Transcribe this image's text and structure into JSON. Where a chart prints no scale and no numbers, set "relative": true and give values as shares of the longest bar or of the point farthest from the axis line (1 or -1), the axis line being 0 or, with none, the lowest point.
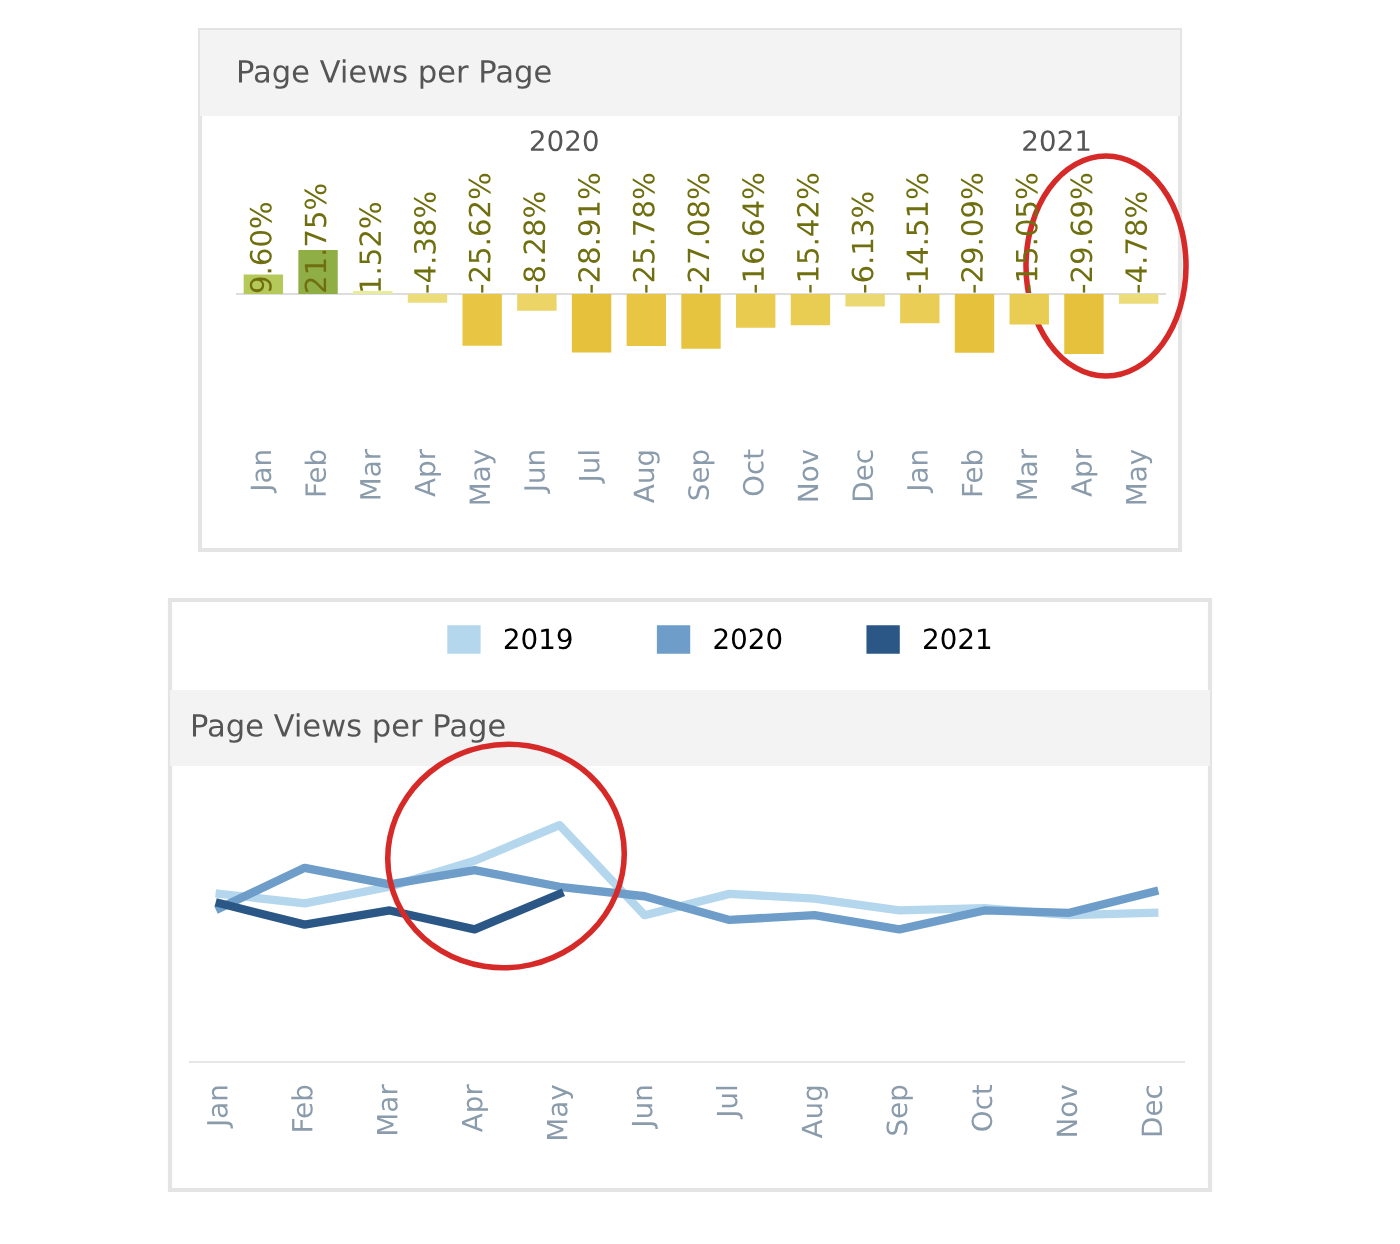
{
  "chart_data": [
    {
      "type": "bar",
      "title": "Page Views per Page",
      "categories": [
        "Jan",
        "Feb",
        "Mar",
        "Apr",
        "May",
        "Jun",
        "Jul",
        "Aug",
        "Sep",
        "Oct",
        "Nov",
        "Dec",
        "Jan",
        "Feb",
        "Mar",
        "Apr",
        "May"
      ],
      "values": [
        9.6,
        21.75,
        1.52,
        -4.38,
        -25.62,
        -8.28,
        -28.91,
        -25.78,
        -27.08,
        -16.64,
        -15.42,
        -6.13,
        -14.51,
        -29.09,
        -15.05,
        -29.69,
        -4.78
      ],
      "value_labels": [
        "9.60%",
        "21.75%",
        "1.52%",
        "-4.38%",
        "-25.62%",
        "-8.28%",
        "-28.91%",
        "-25.78%",
        "-27.08%",
        "-16.64%",
        "-15.42%",
        "-6.13%",
        "-14.51%",
        "-29.09%",
        "-15.05%",
        "-29.69%",
        "-4.78%"
      ],
      "colors": [
        "#b5c95a",
        "#8fae45",
        "#e9ec9a",
        "#ecdc7a",
        "#e8c643",
        "#ecd466",
        "#e5c13c",
        "#e8c643",
        "#e6c440",
        "#e9cb4f",
        "#e9cc52",
        "#ecd870",
        "#eacd55",
        "#e5c13c",
        "#e9cc52",
        "#e5c13c",
        "#ecdc7a"
      ],
      "annotations": [
        "2020",
        "2021"
      ]
    },
    {
      "type": "line",
      "title": "Page Views per Page",
      "relative": true,
      "categories": [
        "Jan",
        "Feb",
        "Mar",
        "Apr",
        "May",
        "Jun",
        "Jul",
        "Aug",
        "Sep",
        "Oct",
        "Nov",
        "Dec"
      ],
      "series": [
        {
          "name": "2019",
          "color": "#b4d7ed",
          "values": [
            0.71,
            0.67,
            0.74,
            0.85,
            1.0,
            0.62,
            0.71,
            0.69,
            0.64,
            0.65,
            0.62,
            0.63
          ]
        },
        {
          "name": "2020",
          "color": "#6d9dc8",
          "values": [
            0.65,
            0.82,
            0.75,
            0.81,
            0.74,
            0.7,
            0.6,
            0.62,
            0.56,
            0.64,
            0.63,
            0.72
          ]
        },
        {
          "name": "2021",
          "color": "#2b5786",
          "values": [
            0.67,
            0.58,
            0.64,
            0.56,
            0.71,
            null,
            null,
            null,
            null,
            null,
            null,
            null
          ]
        }
      ],
      "legend": "top",
      "marker": "none",
      "line_style": "solid"
    }
  ]
}
